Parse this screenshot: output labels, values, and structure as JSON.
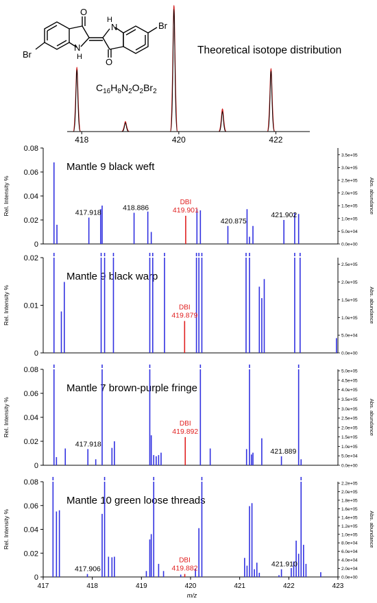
{
  "structure": {
    "formula_parts": [
      "C",
      "16",
      "H",
      "8",
      "N",
      "2",
      "O",
      "2",
      "Br",
      "2"
    ],
    "atom_labels": {
      "o_top": "O",
      "o_bottom": "O",
      "nh_top": "H",
      "n_top": "N",
      "nh_bottom": "H",
      "n_bottom": "N",
      "br_left": "Br",
      "br_right": "Br"
    }
  },
  "colors": {
    "bar": "#3030e0",
    "marker": "#e02020",
    "iso_red": "#d01818",
    "iso_black": "#000000",
    "axis": "#000000"
  },
  "chart_data": [
    {
      "type": "line",
      "title": "Theoretical isotope distribution",
      "xlim": [
        417.7,
        422.7
      ],
      "ylim": [
        0,
        1
      ],
      "x_ticks": [
        "418",
        "420",
        "422"
      ],
      "x_tick_values": [
        418,
        420,
        422
      ],
      "series": [
        {
          "color": "red",
          "peaks": [
            [
              417.9,
              0.51
            ],
            [
              418.9,
              0.08
            ],
            [
              419.9,
              1.0
            ],
            [
              420.9,
              0.18
            ],
            [
              421.9,
              0.5
            ]
          ]
        },
        {
          "color": "black",
          "peaks": [
            [
              417.9,
              0.49
            ],
            [
              418.9,
              0.07
            ],
            [
              419.9,
              0.97
            ],
            [
              420.9,
              0.16
            ],
            [
              421.9,
              0.48
            ]
          ]
        }
      ]
    },
    {
      "type": "bar",
      "title": "Mantle 9 black weft",
      "ylabel": "Rel. Intensity %",
      "ylabel_right": "Abs. abundance",
      "xlim": [
        417,
        423
      ],
      "ylim": [
        0,
        0.08
      ],
      "y_ticks": [
        "0",
        "0.02",
        "0.04",
        "0.06",
        "0.08"
      ],
      "y_tick_values": [
        0,
        0.02,
        0.04,
        0.06,
        0.08
      ],
      "right_ticks": [
        "0.0e+00",
        "5.0e+04",
        "1.0e+05",
        "1.5e+05",
        "2.0e+05",
        "2.5e+05",
        "3.0e+05",
        "3.5e+05"
      ],
      "peaks": [
        [
          417.22,
          0.068
        ],
        [
          417.28,
          0.016
        ],
        [
          417.93,
          0.022
        ],
        [
          418.17,
          0.029
        ],
        [
          418.2,
          0.032
        ],
        [
          418.85,
          0.026
        ],
        [
          419.13,
          0.027
        ],
        [
          419.2,
          0.01
        ],
        [
          420.13,
          0.029
        ],
        [
          420.2,
          0.028
        ],
        [
          420.76,
          0.015
        ],
        [
          421.15,
          0.029
        ],
        [
          421.2,
          0.006
        ],
        [
          421.27,
          0.015
        ],
        [
          421.9,
          0.02
        ],
        [
          422.12,
          0.026
        ],
        [
          422.2,
          0.025
        ]
      ],
      "highlight": {
        "label": "DBI",
        "value": "419.901",
        "x": 419.901,
        "y": 0.0235
      },
      "annotations": [
        {
          "text": "417.918",
          "x": 417.918,
          "y": 0.022
        },
        {
          "text": "418.886",
          "x": 418.886,
          "y": 0.026
        },
        {
          "text": "420.875",
          "x": 420.875,
          "y": 0.015
        },
        {
          "text": "421.902",
          "x": 421.902,
          "y": 0.02
        }
      ]
    },
    {
      "type": "bar",
      "title": "Mantle 9 black warp",
      "ylabel": "Rel. Intensity %",
      "ylabel_right": "Abs. abundance",
      "xlim": [
        417,
        423
      ],
      "ylim": [
        0,
        0.02
      ],
      "y_ticks": [
        "0",
        "0.01",
        "0.02"
      ],
      "y_tick_values": [
        0,
        0.01,
        0.02
      ],
      "right_ticks": [
        "0.0e+00",
        "5.0e+04",
        "1.0e+05",
        "1.5e+05",
        "2.0e+05",
        "2.5e+05"
      ],
      "peaks": [
        [
          417.22,
          0.02
        ],
        [
          417.37,
          0.0087
        ],
        [
          417.43,
          0.0149
        ],
        [
          418.18,
          0.02
        ],
        [
          418.25,
          0.02
        ],
        [
          418.43,
          0.02
        ],
        [
          419.17,
          0.02
        ],
        [
          419.23,
          0.02
        ],
        [
          419.47,
          0.02
        ],
        [
          420.12,
          0.02
        ],
        [
          420.17,
          0.02
        ],
        [
          420.23,
          0.02
        ],
        [
          421.13,
          0.02
        ],
        [
          421.2,
          0.02
        ],
        [
          421.4,
          0.0139
        ],
        [
          421.45,
          0.0115
        ],
        [
          421.5,
          0.0155
        ],
        [
          422.12,
          0.02
        ],
        [
          422.23,
          0.02
        ],
        [
          422.97,
          0.0031
        ]
      ],
      "highlight": {
        "label": "DBI",
        "value": "419.879",
        "x": 419.879,
        "y": 0.0067
      },
      "annotations": []
    },
    {
      "type": "bar",
      "title": "Mantle 7 brown-purple fringe",
      "ylabel": "Rel. Intensity %",
      "ylabel_right": "Abs. abundance",
      "xlim": [
        417,
        423
      ],
      "ylim": [
        0,
        0.08
      ],
      "y_ticks": [
        "0",
        "0.02",
        "0.04",
        "0.06",
        "0.08"
      ],
      "y_tick_values": [
        0,
        0.02,
        0.04,
        0.06,
        0.08
      ],
      "right_ticks": [
        "0.0e+00",
        "5.0e+04",
        "1.0e+05",
        "1.5e+05",
        "2.0e+05",
        "2.5e+05",
        "3.0e+05",
        "3.5e+05",
        "4.0e+05",
        "4.5e+05",
        "5.0e+05"
      ],
      "peaks": [
        [
          417.22,
          0.08
        ],
        [
          417.27,
          0.0068
        ],
        [
          417.45,
          0.014
        ],
        [
          417.91,
          0.0135
        ],
        [
          418.07,
          0.005
        ],
        [
          418.2,
          0.08
        ],
        [
          418.4,
          0.0145
        ],
        [
          418.45,
          0.02
        ],
        [
          419.17,
          0.08
        ],
        [
          419.2,
          0.025
        ],
        [
          419.25,
          0.0085
        ],
        [
          419.3,
          0.0075
        ],
        [
          419.35,
          0.0085
        ],
        [
          419.4,
          0.0105
        ],
        [
          420.2,
          0.08
        ],
        [
          420.4,
          0.014
        ],
        [
          421.14,
          0.0135
        ],
        [
          421.2,
          0.08
        ],
        [
          421.24,
          0.009
        ],
        [
          421.27,
          0.0105
        ],
        [
          421.45,
          0.0225
        ],
        [
          421.85,
          0.0075
        ],
        [
          422.2,
          0.08
        ],
        [
          422.25,
          0.005
        ]
      ],
      "highlight": {
        "label": "DBI",
        "value": "419.892",
        "x": 419.892,
        "y": 0.0235
      },
      "annotations": [
        {
          "text": "417.918",
          "x": 417.918,
          "y": 0.0135
        },
        {
          "text": "421.889",
          "x": 421.889,
          "y": 0.0075
        }
      ]
    },
    {
      "type": "bar",
      "title": "Mantle 10 green loose threads",
      "xlabel": "m/z",
      "ylabel": "Rel. Intensity %",
      "ylabel_right": "Abs. abundance",
      "xlim": [
        417,
        423
      ],
      "ylim": [
        0,
        0.08
      ],
      "x_ticks": [
        "417",
        "418",
        "419",
        "420",
        "421",
        "422",
        "423"
      ],
      "x_tick_values": [
        417,
        418,
        419,
        420,
        421,
        422,
        423
      ],
      "y_ticks": [
        "0",
        "0.02",
        "0.04",
        "0.06",
        "0.08"
      ],
      "y_tick_values": [
        0,
        0.02,
        0.04,
        0.06,
        0.08
      ],
      "right_ticks": [
        "0.0e+00",
        "2.0e+04",
        "4.0e+04",
        "6.0e+04",
        "8.0e+04",
        "1.0e+05",
        "1.2e+05",
        "1.4e+05",
        "1.6e+05",
        "1.8e+05",
        "2.0e+05",
        "2.2e+05"
      ],
      "peaks": [
        [
          417.2,
          0.08
        ],
        [
          417.27,
          0.055
        ],
        [
          417.33,
          0.056
        ],
        [
          417.9,
          0.0025
        ],
        [
          418.2,
          0.053
        ],
        [
          418.25,
          0.08
        ],
        [
          418.33,
          0.017
        ],
        [
          418.4,
          0.0165
        ],
        [
          418.45,
          0.017
        ],
        [
          419.1,
          0.005
        ],
        [
          419.17,
          0.0315
        ],
        [
          419.2,
          0.036
        ],
        [
          419.25,
          0.08
        ],
        [
          419.35,
          0.011
        ],
        [
          419.45,
          0.005
        ],
        [
          419.8,
          0.002
        ],
        [
          420.1,
          0.007
        ],
        [
          420.17,
          0.041
        ],
        [
          420.23,
          0.08
        ],
        [
          421.1,
          0.016
        ],
        [
          421.15,
          0.0095
        ],
        [
          421.2,
          0.0595
        ],
        [
          421.25,
          0.062
        ],
        [
          421.3,
          0.0065
        ],
        [
          421.35,
          0.012
        ],
        [
          421.4,
          0.0035
        ],
        [
          421.8,
          0.0015
        ],
        [
          421.85,
          0.0065
        ],
        [
          422.05,
          0.0075
        ],
        [
          422.1,
          0.013
        ],
        [
          422.15,
          0.0305
        ],
        [
          422.2,
          0.0195
        ],
        [
          422.25,
          0.08
        ],
        [
          422.3,
          0.027
        ],
        [
          422.35,
          0.011
        ],
        [
          422.65,
          0.004
        ]
      ],
      "highlight": {
        "label": "DBI",
        "value": "419.882",
        "x": 419.882,
        "y": 0.0025
      },
      "annotations": [
        {
          "text": "417.906",
          "x": 417.906,
          "y": 0.0025
        },
        {
          "text": "421.910",
          "x": 421.91,
          "y": 0.0065
        }
      ]
    }
  ]
}
